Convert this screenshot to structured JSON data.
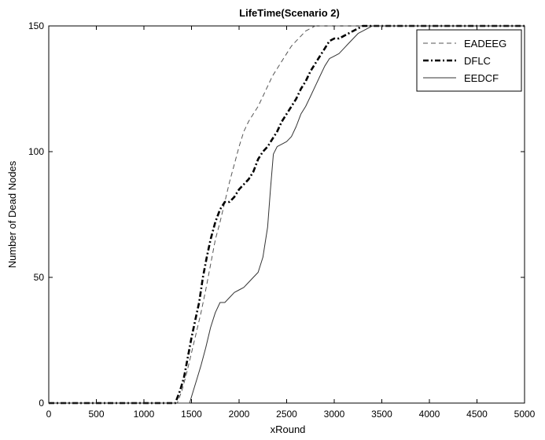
{
  "chart_data": {
    "type": "line",
    "title": "LifeTime(Scenario 2)",
    "xlabel": "xRound",
    "ylabel": "Number of Dead Nodes",
    "xlim": [
      0,
      5000
    ],
    "ylim": [
      0,
      150
    ],
    "xticks": [
      0,
      500,
      1000,
      1500,
      2000,
      2500,
      3000,
      3500,
      4000,
      4500,
      5000
    ],
    "yticks": [
      0,
      50,
      100,
      150
    ],
    "grid": false,
    "legend_position": "top-right",
    "series": [
      {
        "name": "EADEEG",
        "style": "dashed",
        "color": "#555555",
        "x": [
          0,
          1350,
          1400,
          1450,
          1500,
          1550,
          1600,
          1650,
          1700,
          1750,
          1800,
          1850,
          1900,
          1950,
          2000,
          2050,
          2100,
          2150,
          2200,
          2250,
          2300,
          2350,
          2400,
          2450,
          2500,
          2550,
          2600,
          2650,
          2700,
          2750,
          2800,
          5000
        ],
        "y": [
          0,
          0,
          5,
          12,
          20,
          28,
          36,
          45,
          55,
          65,
          72,
          80,
          88,
          95,
          102,
          108,
          112,
          115,
          118,
          122,
          126,
          130,
          133,
          136,
          139,
          142,
          144,
          146,
          148,
          149,
          150,
          150
        ]
      },
      {
        "name": "DFLC",
        "style": "dashdot",
        "color": "#000000",
        "x": [
          0,
          1330,
          1380,
          1420,
          1460,
          1500,
          1540,
          1580,
          1620,
          1660,
          1700,
          1750,
          1800,
          1850,
          1900,
          1950,
          2000,
          2050,
          2100,
          2150,
          2200,
          2250,
          2300,
          2350,
          2400,
          2450,
          2500,
          2550,
          2600,
          2650,
          2700,
          2750,
          2800,
          2850,
          2900,
          2950,
          3000,
          3050,
          3100,
          3150,
          3200,
          3250,
          3300,
          5000
        ],
        "y": [
          0,
          0,
          5,
          10,
          18,
          26,
          33,
          40,
          50,
          58,
          65,
          72,
          77,
          80,
          80,
          82,
          85,
          87,
          89,
          92,
          97,
          100,
          102,
          105,
          108,
          112,
          115,
          118,
          121,
          125,
          128,
          132,
          135,
          138,
          141,
          144,
          145,
          145,
          146,
          147,
          148,
          149,
          150,
          150
        ]
      },
      {
        "name": "EEDCF",
        "style": "solid",
        "color": "#333333",
        "x": [
          0,
          1480,
          1520,
          1560,
          1600,
          1650,
          1700,
          1750,
          1800,
          1850,
          1900,
          1950,
          2000,
          2050,
          2100,
          2150,
          2200,
          2250,
          2300,
          2330,
          2360,
          2400,
          2450,
          2500,
          2550,
          2600,
          2650,
          2700,
          2750,
          2800,
          2850,
          2900,
          2950,
          3000,
          3050,
          3100,
          3150,
          3200,
          3250,
          3300,
          3350,
          3400,
          5000
        ],
        "y": [
          0,
          0,
          5,
          10,
          15,
          22,
          30,
          36,
          40,
          40,
          42,
          44,
          45,
          46,
          48,
          50,
          52,
          58,
          70,
          85,
          99,
          102,
          103,
          104,
          106,
          110,
          115,
          118,
          122,
          126,
          130,
          134,
          137,
          138,
          139,
          141,
          143,
          145,
          147,
          148,
          149,
          150,
          150
        ]
      }
    ]
  }
}
